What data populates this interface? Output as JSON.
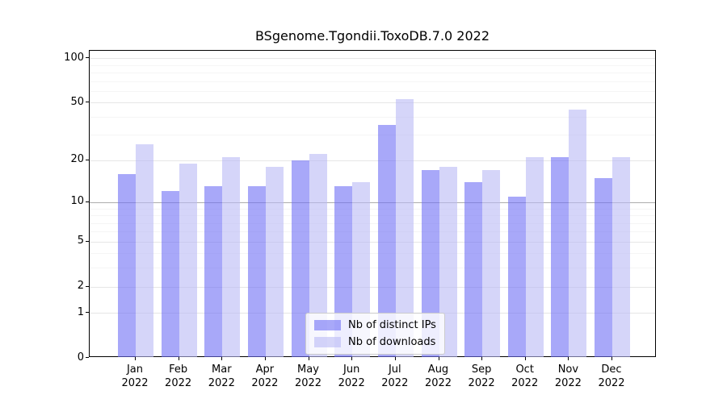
{
  "chart_data": {
    "type": "bar",
    "title": "BSgenome.Tgondii.ToxoDB.7.0 2022",
    "categories": [
      {
        "month": "Jan",
        "year": "2022"
      },
      {
        "month": "Feb",
        "year": "2022"
      },
      {
        "month": "Mar",
        "year": "2022"
      },
      {
        "month": "Apr",
        "year": "2022"
      },
      {
        "month": "May",
        "year": "2022"
      },
      {
        "month": "Jun",
        "year": "2022"
      },
      {
        "month": "Jul",
        "year": "2022"
      },
      {
        "month": "Aug",
        "year": "2022"
      },
      {
        "month": "Sep",
        "year": "2022"
      },
      {
        "month": "Oct",
        "year": "2022"
      },
      {
        "month": "Nov",
        "year": "2022"
      },
      {
        "month": "Dec",
        "year": "2022"
      }
    ],
    "series": [
      {
        "name": "Nb of distinct IPs",
        "color": "rgba(110,110,245,0.6)",
        "values": [
          16,
          12,
          13,
          13,
          20,
          13,
          35,
          17,
          14,
          11,
          21,
          15
        ]
      },
      {
        "name": "Nb of downloads",
        "color": "rgba(185,185,245,0.6)",
        "values": [
          26,
          19,
          21,
          18,
          22,
          14,
          53,
          18,
          17,
          21,
          45,
          21
        ]
      }
    ],
    "yaxis": {
      "scale": "log1p",
      "ticks": [
        100,
        50,
        20,
        10,
        5,
        2,
        1,
        0
      ],
      "emphasized_gridline": 10,
      "minor_gridlines": [
        3,
        4,
        6,
        7,
        8,
        9,
        30,
        40,
        60,
        70,
        80,
        90
      ],
      "ylim": [
        0,
        112
      ]
    },
    "grid": true,
    "legend_position": "bottom-center"
  },
  "colors": {
    "ips_bar": "rgba(110,110,245,0.6)",
    "downloads_bar": "rgba(185,185,245,0.6)",
    "major_gridline": "#e6e6e6",
    "minor_gridline": "#f5f5f5",
    "emphasized_gridline": "#adadad",
    "axis": "#000000"
  }
}
